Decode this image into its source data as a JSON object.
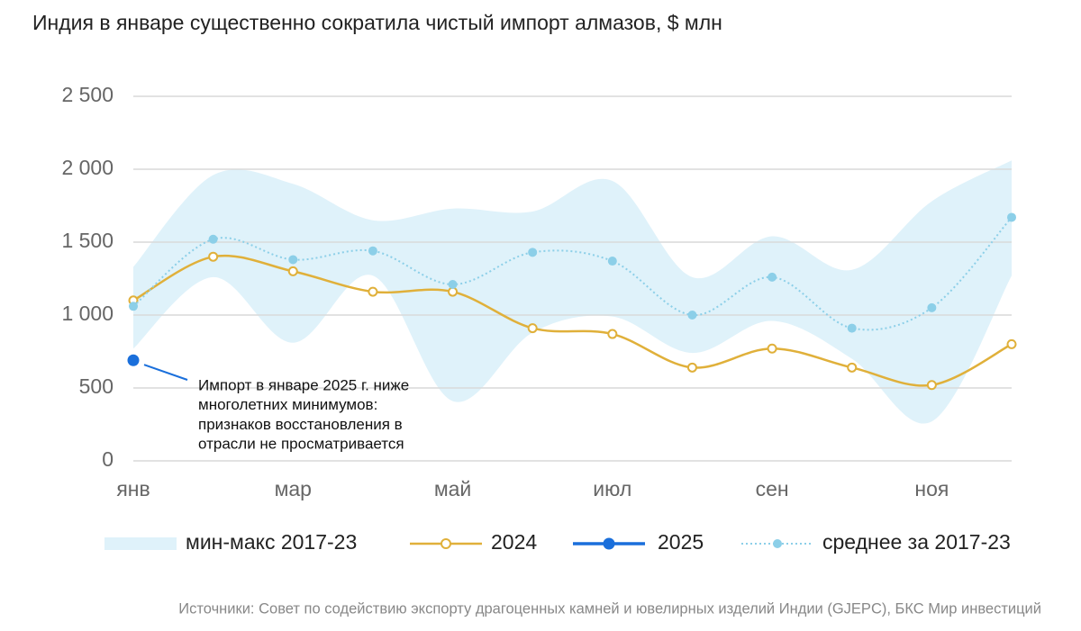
{
  "chart_data": {
    "type": "line",
    "title": "Индия в январе существенно сократила чистый импорт алмазов, $ млн",
    "categories": [
      "янв",
      null,
      "мар",
      null,
      "май",
      null,
      "июл",
      null,
      "сен",
      null,
      "ноя",
      null
    ],
    "band": {
      "name": "мин-макс 2017-23",
      "color": "#dff2fa",
      "max": [
        1330,
        1960,
        1900,
        1650,
        1730,
        1710,
        1920,
        1260,
        1540,
        1310,
        1780,
        2060
      ],
      "min": [
        770,
        1260,
        810,
        1270,
        410,
        880,
        990,
        740,
        960,
        700,
        270,
        1270
      ]
    },
    "series": [
      {
        "name": "2024",
        "color": "#e0b03a",
        "values": [
          1100,
          1400,
          1300,
          1160,
          1160,
          910,
          870,
          640,
          770,
          640,
          520,
          800
        ]
      },
      {
        "name": "2025",
        "color": "#1a6fdb",
        "values": [
          690,
          null,
          null,
          null,
          null,
          null,
          null,
          null,
          null,
          null,
          null,
          null
        ]
      },
      {
        "name": "среднее за 2017-23",
        "color": "#8ccfe8",
        "dotted": true,
        "values": [
          1060,
          1520,
          1380,
          1440,
          1210,
          1430,
          1370,
          1000,
          1260,
          910,
          1050,
          1670
        ]
      }
    ],
    "ylim": [
      0,
      2500
    ],
    "yticks": [
      0,
      500,
      {
        "value": 1000,
        "label": "1 000"
      },
      {
        "value": 1500,
        "label": "1 500"
      },
      {
        "value": 2000,
        "label": "2 000"
      },
      {
        "value": 2500,
        "label": "2 500"
      }
    ],
    "grid": true,
    "annotation": [
      "Импорт в январе 2025 г. ниже",
      "многолетних минимумов:",
      "признаков восстановления в",
      "отрасли не просматривается"
    ],
    "source": "Источники: Совет по содействию экспорту драгоценных камней и ювелирных изделий Индии (GJEPC), БКС Мир инвестиций"
  }
}
